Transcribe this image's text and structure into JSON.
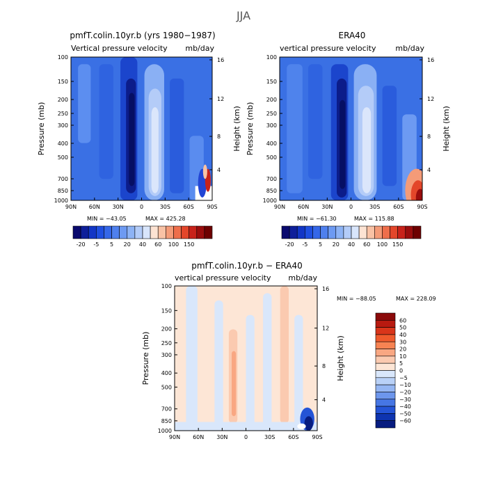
{
  "figure": {
    "title": "JJA"
  },
  "scale": {
    "levels_main": [
      -20,
      -15,
      -10,
      -5,
      0,
      5,
      10,
      15,
      20,
      30,
      40,
      50,
      60,
      80,
      100,
      120,
      150
    ],
    "labels_main": [
      "-20",
      "-5",
      "5",
      "20",
      "40",
      "60",
      "100",
      "150"
    ],
    "colors_main": [
      "#0a0a6e",
      "#0e1f9a",
      "#1236c6",
      "#1f4fe0",
      "#3567e8",
      "#4f80ee",
      "#6d9af2",
      "#8db3f5",
      "#b3ccf8",
      "#d8e5fb",
      "#fde3d3",
      "#f9c2a5",
      "#f49b78",
      "#ee6e4b",
      "#e3462a",
      "#c8221a",
      "#9a0d0d",
      "#6e0000"
    ],
    "levels_diff": [
      -60,
      -50,
      -40,
      -30,
      -20,
      -10,
      -5,
      0,
      5,
      10,
      20,
      30,
      40,
      50,
      60
    ],
    "labels_diff": [
      "60",
      "50",
      "40",
      "30",
      "20",
      "10",
      "5",
      "0",
      "−5",
      "−10",
      "−20",
      "−30",
      "−40",
      "−50",
      "−60"
    ],
    "colors_diff": [
      "#8b0a0a",
      "#b81a10",
      "#d9351a",
      "#ef5a2c",
      "#f78352",
      "#f9a782",
      "#fbcab0",
      "#fde6d6",
      "#d9e7fb",
      "#b9d1f7",
      "#95b6f2",
      "#6d96ec",
      "#4676e4",
      "#2454d6",
      "#0e34b0",
      "#071c80"
    ]
  },
  "chart_data": [
    {
      "type": "heatmap",
      "panel": "model",
      "title": "pmfT.colin.10yr.b (yrs 1980−1987)",
      "subtitle_left": "Vertical pressure velocity",
      "subtitle_right": "mb/day",
      "ylabel": "Pressure (mb)",
      "ylabel_right": "Height (km)",
      "x_ticks": [
        "90N",
        "60N",
        "30N",
        "0",
        "30S",
        "60S",
        "90S"
      ],
      "y_ticks": [
        "100",
        "150",
        "200",
        "250",
        "300",
        "400",
        "500",
        "700",
        "850",
        "1000"
      ],
      "y_ticks_right": [
        "16",
        "12",
        "8",
        "4"
      ],
      "min_label": "MIN = −43.05",
      "max_label": "MAX = 425.28",
      "min": -43.05,
      "max": 425.28,
      "scale_ref": "levels_main"
    },
    {
      "type": "heatmap",
      "panel": "obs",
      "title": "ERA40",
      "subtitle_left": "vertical pressure velocity",
      "subtitle_right": "mb/day",
      "ylabel": "Pressure (mb)",
      "ylabel_right": "Height (km)",
      "x_ticks": [
        "90N",
        "60N",
        "30N",
        "0",
        "30S",
        "60S",
        "90S"
      ],
      "y_ticks": [
        "100",
        "150",
        "200",
        "250",
        "300",
        "400",
        "500",
        "700",
        "850",
        "1000"
      ],
      "y_ticks_right": [
        "16",
        "12",
        "8",
        "4"
      ],
      "min_label": "MIN = −61.30",
      "max_label": "MAX = 115.88",
      "min": -61.3,
      "max": 115.88,
      "scale_ref": "levels_main"
    },
    {
      "type": "heatmap",
      "panel": "diff",
      "title": "pmfT.colin.10yr.b − ERA40",
      "subtitle_left": "vertical pressure velocity",
      "subtitle_right": "mb/day",
      "ylabel": "Pressure (mb)",
      "ylabel_right": "Height (km)",
      "x_ticks": [
        "90N",
        "60N",
        "30N",
        "0",
        "30S",
        "60S",
        "90S"
      ],
      "y_ticks": [
        "100",
        "150",
        "200",
        "250",
        "300",
        "400",
        "500",
        "700",
        "850",
        "1000"
      ],
      "y_ticks_right": [
        "16",
        "12",
        "8",
        "4"
      ],
      "min_label": "MIN = −88.05",
      "max_label": "MAX = 228.09",
      "min": -88.05,
      "max": 228.09,
      "scale_ref": "levels_diff"
    }
  ]
}
